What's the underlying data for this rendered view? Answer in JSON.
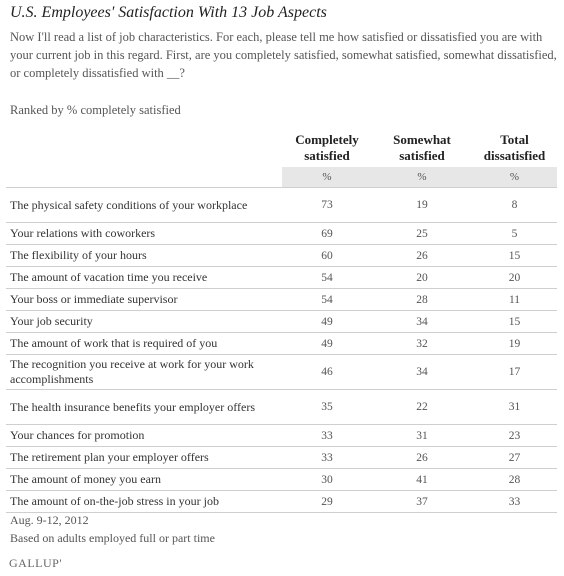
{
  "title": "U.S. Employees' Satisfaction With 13 Job Aspects",
  "question": "Now I'll read a list of job characteristics. For each, please tell me how satisfied or dissatisfied you are with your current job in this regard. First, are you completely satisfied, somewhat satisfied, somewhat dissatisfied, or completely dissatisfied with __?",
  "ranked_note": "Ranked by % completely satisfied",
  "footnote_date": "Aug. 9-12, 2012",
  "footnote_basis": "Based on adults employed full or part time",
  "logo": "GALLUP'",
  "chart_data": {
    "type": "table",
    "columns": [
      "Completely satisfied",
      "Somewhat satisfied",
      "Total dissatisfied"
    ],
    "unit": "%",
    "rows": [
      {
        "label": "The physical safety conditions of your workplace",
        "values": [
          73,
          19,
          8
        ]
      },
      {
        "label": "Your relations with coworkers",
        "values": [
          69,
          25,
          5
        ]
      },
      {
        "label": "The flexibility of your hours",
        "values": [
          60,
          26,
          15
        ]
      },
      {
        "label": "The amount of vacation time you receive",
        "values": [
          54,
          20,
          20
        ]
      },
      {
        "label": "Your boss or immediate supervisor",
        "values": [
          54,
          28,
          11
        ]
      },
      {
        "label": "Your job security",
        "values": [
          49,
          34,
          15
        ]
      },
      {
        "label": "The amount of work that is required of you",
        "values": [
          49,
          32,
          19
        ]
      },
      {
        "label": "The recognition you receive at work for your work accomplishments",
        "values": [
          46,
          34,
          17
        ]
      },
      {
        "label": "The health insurance benefits your employer offers",
        "values": [
          35,
          22,
          31
        ]
      },
      {
        "label": "Your chances for promotion",
        "values": [
          33,
          31,
          23
        ]
      },
      {
        "label": "The retirement plan your employer offers",
        "values": [
          33,
          26,
          27
        ]
      },
      {
        "label": "The amount of money you earn",
        "values": [
          30,
          41,
          28
        ]
      },
      {
        "label": "The amount of on-the-job stress in your job",
        "values": [
          29,
          37,
          33
        ]
      }
    ]
  }
}
